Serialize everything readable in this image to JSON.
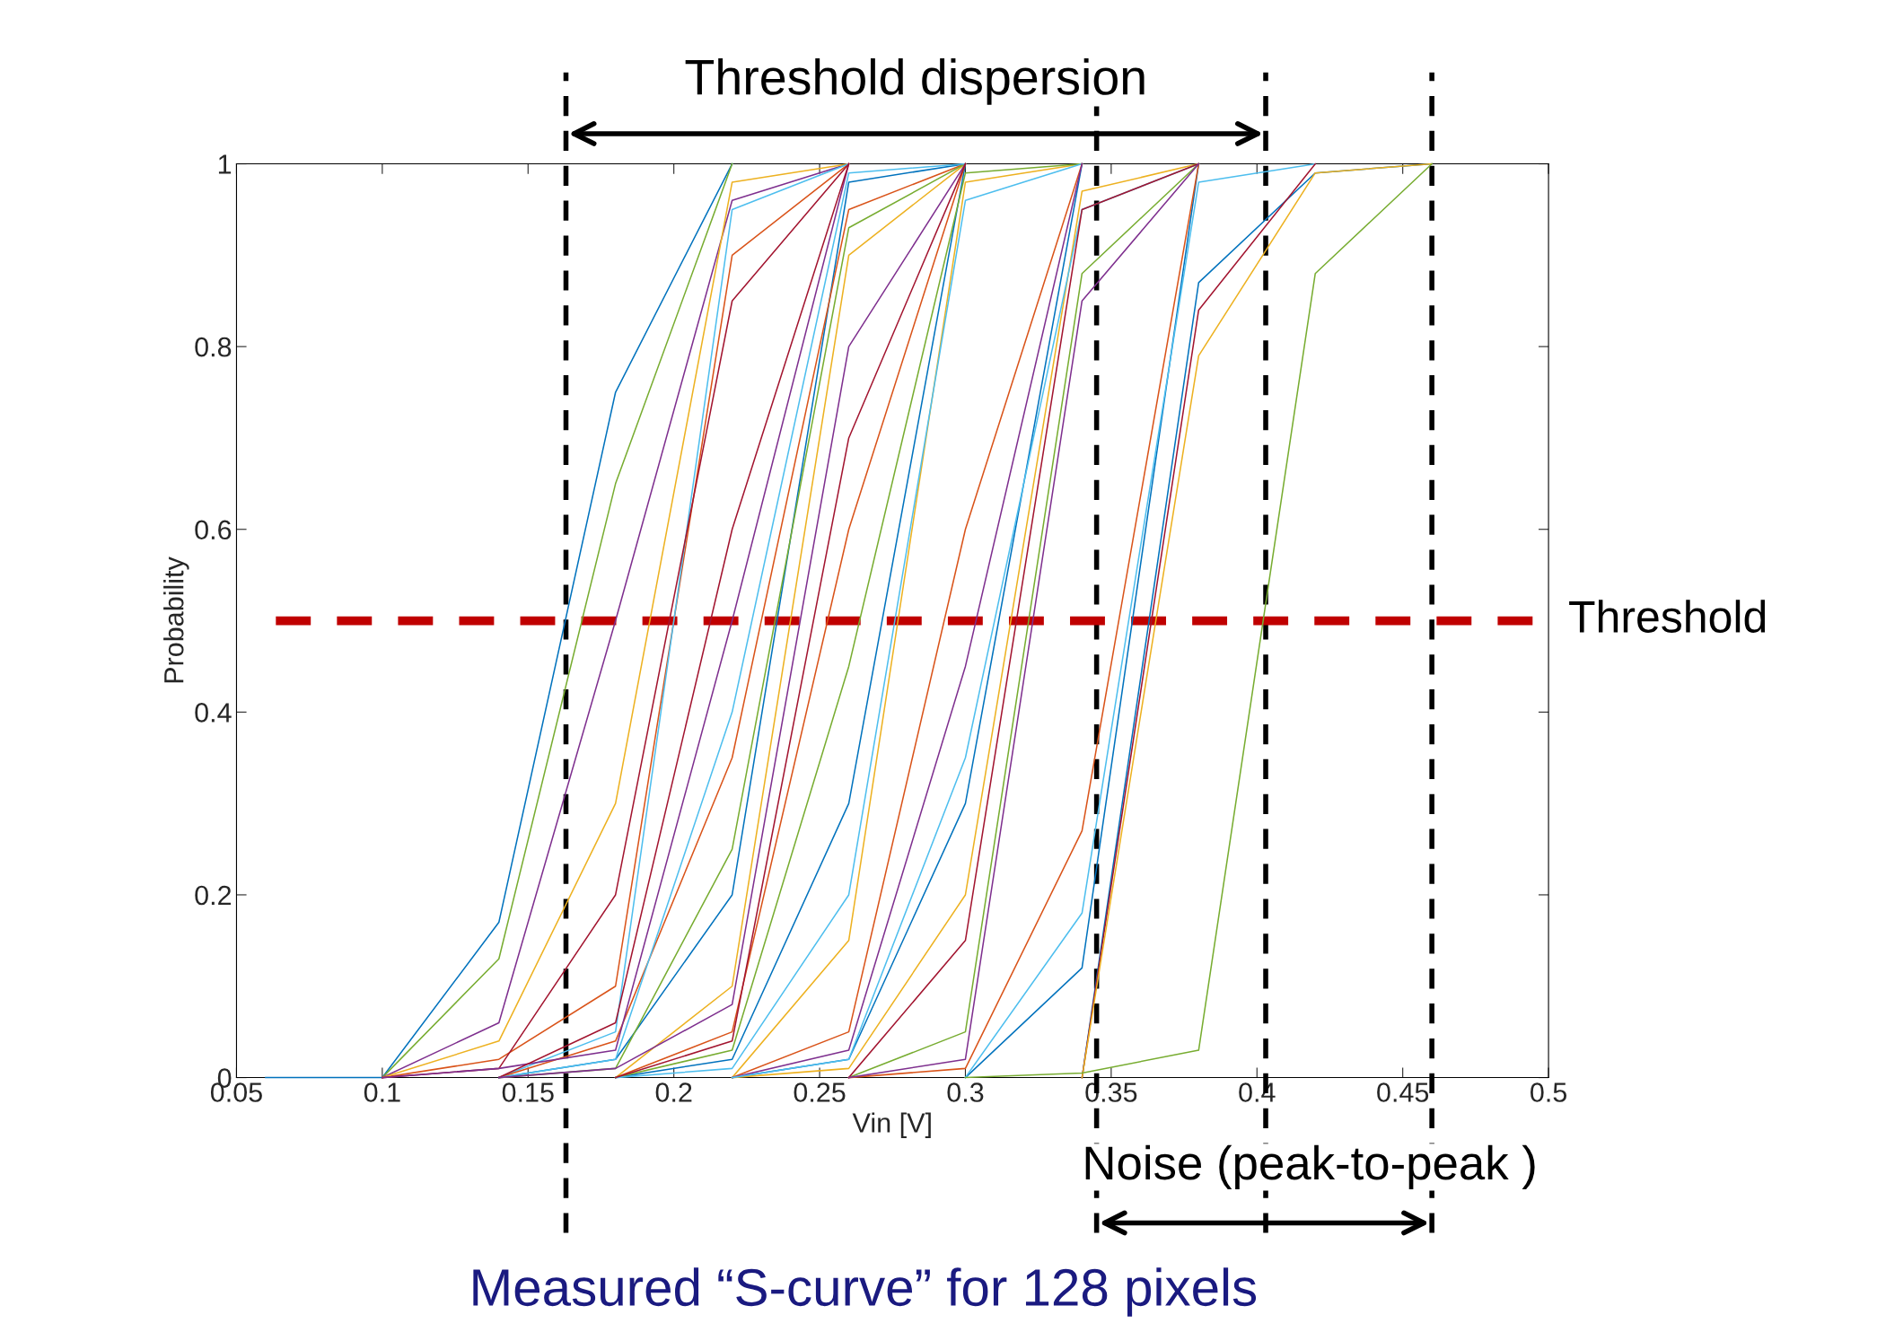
{
  "chart_data": {
    "type": "line",
    "title": "Measured “S-curve” for 128 pixels",
    "xlabel": "Vin [V]",
    "ylabel": "Probability",
    "x": [
      0.06,
      0.1,
      0.14,
      0.18,
      0.22,
      0.26,
      0.3,
      0.34,
      0.38,
      0.42,
      0.46
    ],
    "series": [
      {
        "color": "#0072bd",
        "values": [
          0,
          0,
          0.17,
          0.75,
          1,
          null,
          null,
          null,
          null,
          null,
          null
        ]
      },
      {
        "color": "#77ac30",
        "values": [
          null,
          0,
          0.13,
          0.65,
          1,
          null,
          null,
          null,
          null,
          null,
          null
        ]
      },
      {
        "color": "#7e2f8e",
        "values": [
          null,
          0,
          0.06,
          0.5,
          0.96,
          1,
          null,
          null,
          null,
          null,
          null
        ]
      },
      {
        "color": "#d95319",
        "values": [
          null,
          0,
          0.02,
          0.1,
          0.9,
          1,
          null,
          null,
          null,
          null,
          null
        ]
      },
      {
        "color": "#edb120",
        "values": [
          null,
          0,
          0.04,
          0.3,
          0.98,
          1,
          null,
          null,
          null,
          null,
          null
        ]
      },
      {
        "color": "#4dbeee",
        "values": [
          null,
          null,
          0,
          0.05,
          0.95,
          1,
          null,
          null,
          null,
          null,
          null
        ]
      },
      {
        "color": "#a2142f",
        "values": [
          null,
          0,
          0.01,
          0.2,
          0.85,
          1,
          null,
          null,
          null,
          null,
          null
        ]
      },
      {
        "color": "#0072bd",
        "values": [
          null,
          null,
          0,
          0.02,
          0.2,
          0.98,
          1,
          null,
          null,
          null,
          null
        ]
      },
      {
        "color": "#d95319",
        "values": [
          null,
          null,
          0,
          0.04,
          0.35,
          0.95,
          1,
          null,
          null,
          null,
          null
        ]
      },
      {
        "color": "#edb120",
        "values": [
          null,
          null,
          null,
          0,
          0.1,
          0.9,
          1,
          null,
          null,
          null,
          null
        ]
      },
      {
        "color": "#7e2f8e",
        "values": [
          null,
          0,
          0.01,
          0.03,
          0.5,
          1,
          null,
          null,
          null,
          null,
          null
        ]
      },
      {
        "color": "#77ac30",
        "values": [
          null,
          null,
          0,
          0.01,
          0.25,
          0.93,
          1,
          null,
          null,
          null,
          null
        ]
      },
      {
        "color": "#4dbeee",
        "values": [
          null,
          null,
          0,
          0.02,
          0.4,
          0.99,
          1,
          null,
          null,
          null,
          null
        ]
      },
      {
        "color": "#a2142f",
        "values": [
          null,
          null,
          0,
          0.06,
          0.6,
          1,
          null,
          null,
          null,
          null,
          null
        ]
      },
      {
        "color": "#0072bd",
        "values": [
          null,
          null,
          null,
          0,
          0.02,
          0.3,
          1,
          null,
          null,
          null,
          null
        ]
      },
      {
        "color": "#d95319",
        "values": [
          null,
          null,
          null,
          0,
          0.05,
          0.6,
          1,
          null,
          null,
          null,
          null
        ]
      },
      {
        "color": "#edb120",
        "values": [
          null,
          null,
          null,
          null,
          0,
          0.15,
          0.98,
          1,
          null,
          null,
          null
        ]
      },
      {
        "color": "#7e2f8e",
        "values": [
          null,
          null,
          0,
          0.01,
          0.08,
          0.8,
          1,
          null,
          null,
          null,
          null
        ]
      },
      {
        "color": "#77ac30",
        "values": [
          null,
          null,
          null,
          0,
          0.03,
          0.45,
          0.99,
          1,
          null,
          null,
          null
        ]
      },
      {
        "color": "#4dbeee",
        "values": [
          null,
          null,
          null,
          0,
          0.01,
          0.2,
          0.96,
          1,
          null,
          null,
          null
        ]
      },
      {
        "color": "#a2142f",
        "values": [
          null,
          null,
          null,
          0,
          0.04,
          0.7,
          1,
          null,
          null,
          null,
          null
        ]
      },
      {
        "color": "#0072bd",
        "values": [
          null,
          null,
          null,
          null,
          0,
          0.02,
          0.3,
          1,
          null,
          null,
          null
        ]
      },
      {
        "color": "#d95319",
        "values": [
          null,
          null,
          null,
          null,
          0,
          0.05,
          0.6,
          1,
          null,
          null,
          null
        ]
      },
      {
        "color": "#edb120",
        "values": [
          null,
          null,
          null,
          null,
          0,
          0.01,
          0.2,
          0.97,
          1,
          null,
          null
        ]
      },
      {
        "color": "#7e2f8e",
        "values": [
          null,
          null,
          null,
          null,
          0,
          0.03,
          0.45,
          1,
          null,
          null,
          null
        ]
      },
      {
        "color": "#77ac30",
        "values": [
          null,
          null,
          null,
          null,
          null,
          0,
          0.05,
          0.88,
          1,
          null,
          null
        ]
      },
      {
        "color": "#4dbeee",
        "values": [
          null,
          null,
          null,
          null,
          0,
          0.02,
          0.35,
          0.95,
          1,
          null,
          null
        ]
      },
      {
        "color": "#a2142f",
        "values": [
          null,
          null,
          null,
          null,
          null,
          0,
          0.15,
          0.95,
          1,
          null,
          null
        ]
      },
      {
        "color": "#0072bd",
        "values": [
          null,
          null,
          null,
          null,
          null,
          null,
          0,
          0.12,
          1,
          null,
          null
        ]
      },
      {
        "color": "#4dbeee",
        "values": [
          null,
          null,
          null,
          null,
          null,
          null,
          0,
          0.18,
          0.98,
          1,
          null
        ]
      },
      {
        "color": "#d95319",
        "values": [
          null,
          null,
          null,
          null,
          null,
          0,
          0.01,
          0.27,
          1,
          null,
          null
        ]
      },
      {
        "color": "#7e2f8e",
        "values": [
          null,
          null,
          null,
          null,
          null,
          0,
          0.02,
          0.85,
          1,
          null,
          null
        ]
      },
      {
        "color": "#0072bd",
        "values": [
          null,
          null,
          null,
          null,
          null,
          null,
          null,
          0,
          0.87,
          0.99,
          1
        ]
      },
      {
        "color": "#a2142f",
        "values": [
          null,
          null,
          null,
          null,
          null,
          null,
          null,
          0,
          0.84,
          1,
          null
        ]
      },
      {
        "color": "#edb120",
        "values": [
          null,
          null,
          null,
          null,
          null,
          null,
          null,
          0,
          0.79,
          0.99,
          1
        ]
      },
      {
        "color": "#77ac30",
        "values": [
          null,
          null,
          null,
          null,
          null,
          null,
          0,
          0.005,
          0.03,
          0.88,
          1
        ]
      }
    ],
    "xlim": [
      0.05,
      0.5
    ],
    "xticks": [
      0.05,
      0.1,
      0.15,
      0.2,
      0.25,
      0.3,
      0.35,
      0.4,
      0.45,
      0.5
    ],
    "ylim": [
      0,
      1
    ],
    "yticks": [
      0,
      0.2,
      0.4,
      0.6,
      0.8,
      1
    ],
    "grid": false,
    "legend": false,
    "marker": "none",
    "line_style": "solid",
    "ref_lines": [
      {
        "axis": "x",
        "value": 0.163,
        "label": null,
        "color": "#000000",
        "line_style": "dashed"
      },
      {
        "axis": "x",
        "value": 0.403,
        "label": null,
        "color": "#000000",
        "line_style": "dashed"
      },
      {
        "axis": "x",
        "value": 0.345,
        "label": null,
        "color": "#000000",
        "line_style": "dashed"
      },
      {
        "axis": "x",
        "value": 0.46,
        "label": null,
        "color": "#000000",
        "line_style": "dashed"
      },
      {
        "axis": "y",
        "value": 0.5,
        "label": "Threshold",
        "color": "#c00000",
        "line_style": "dashed"
      }
    ],
    "annotations": [
      "Threshold dispersion",
      "Noise (peak-to-peak )"
    ]
  }
}
